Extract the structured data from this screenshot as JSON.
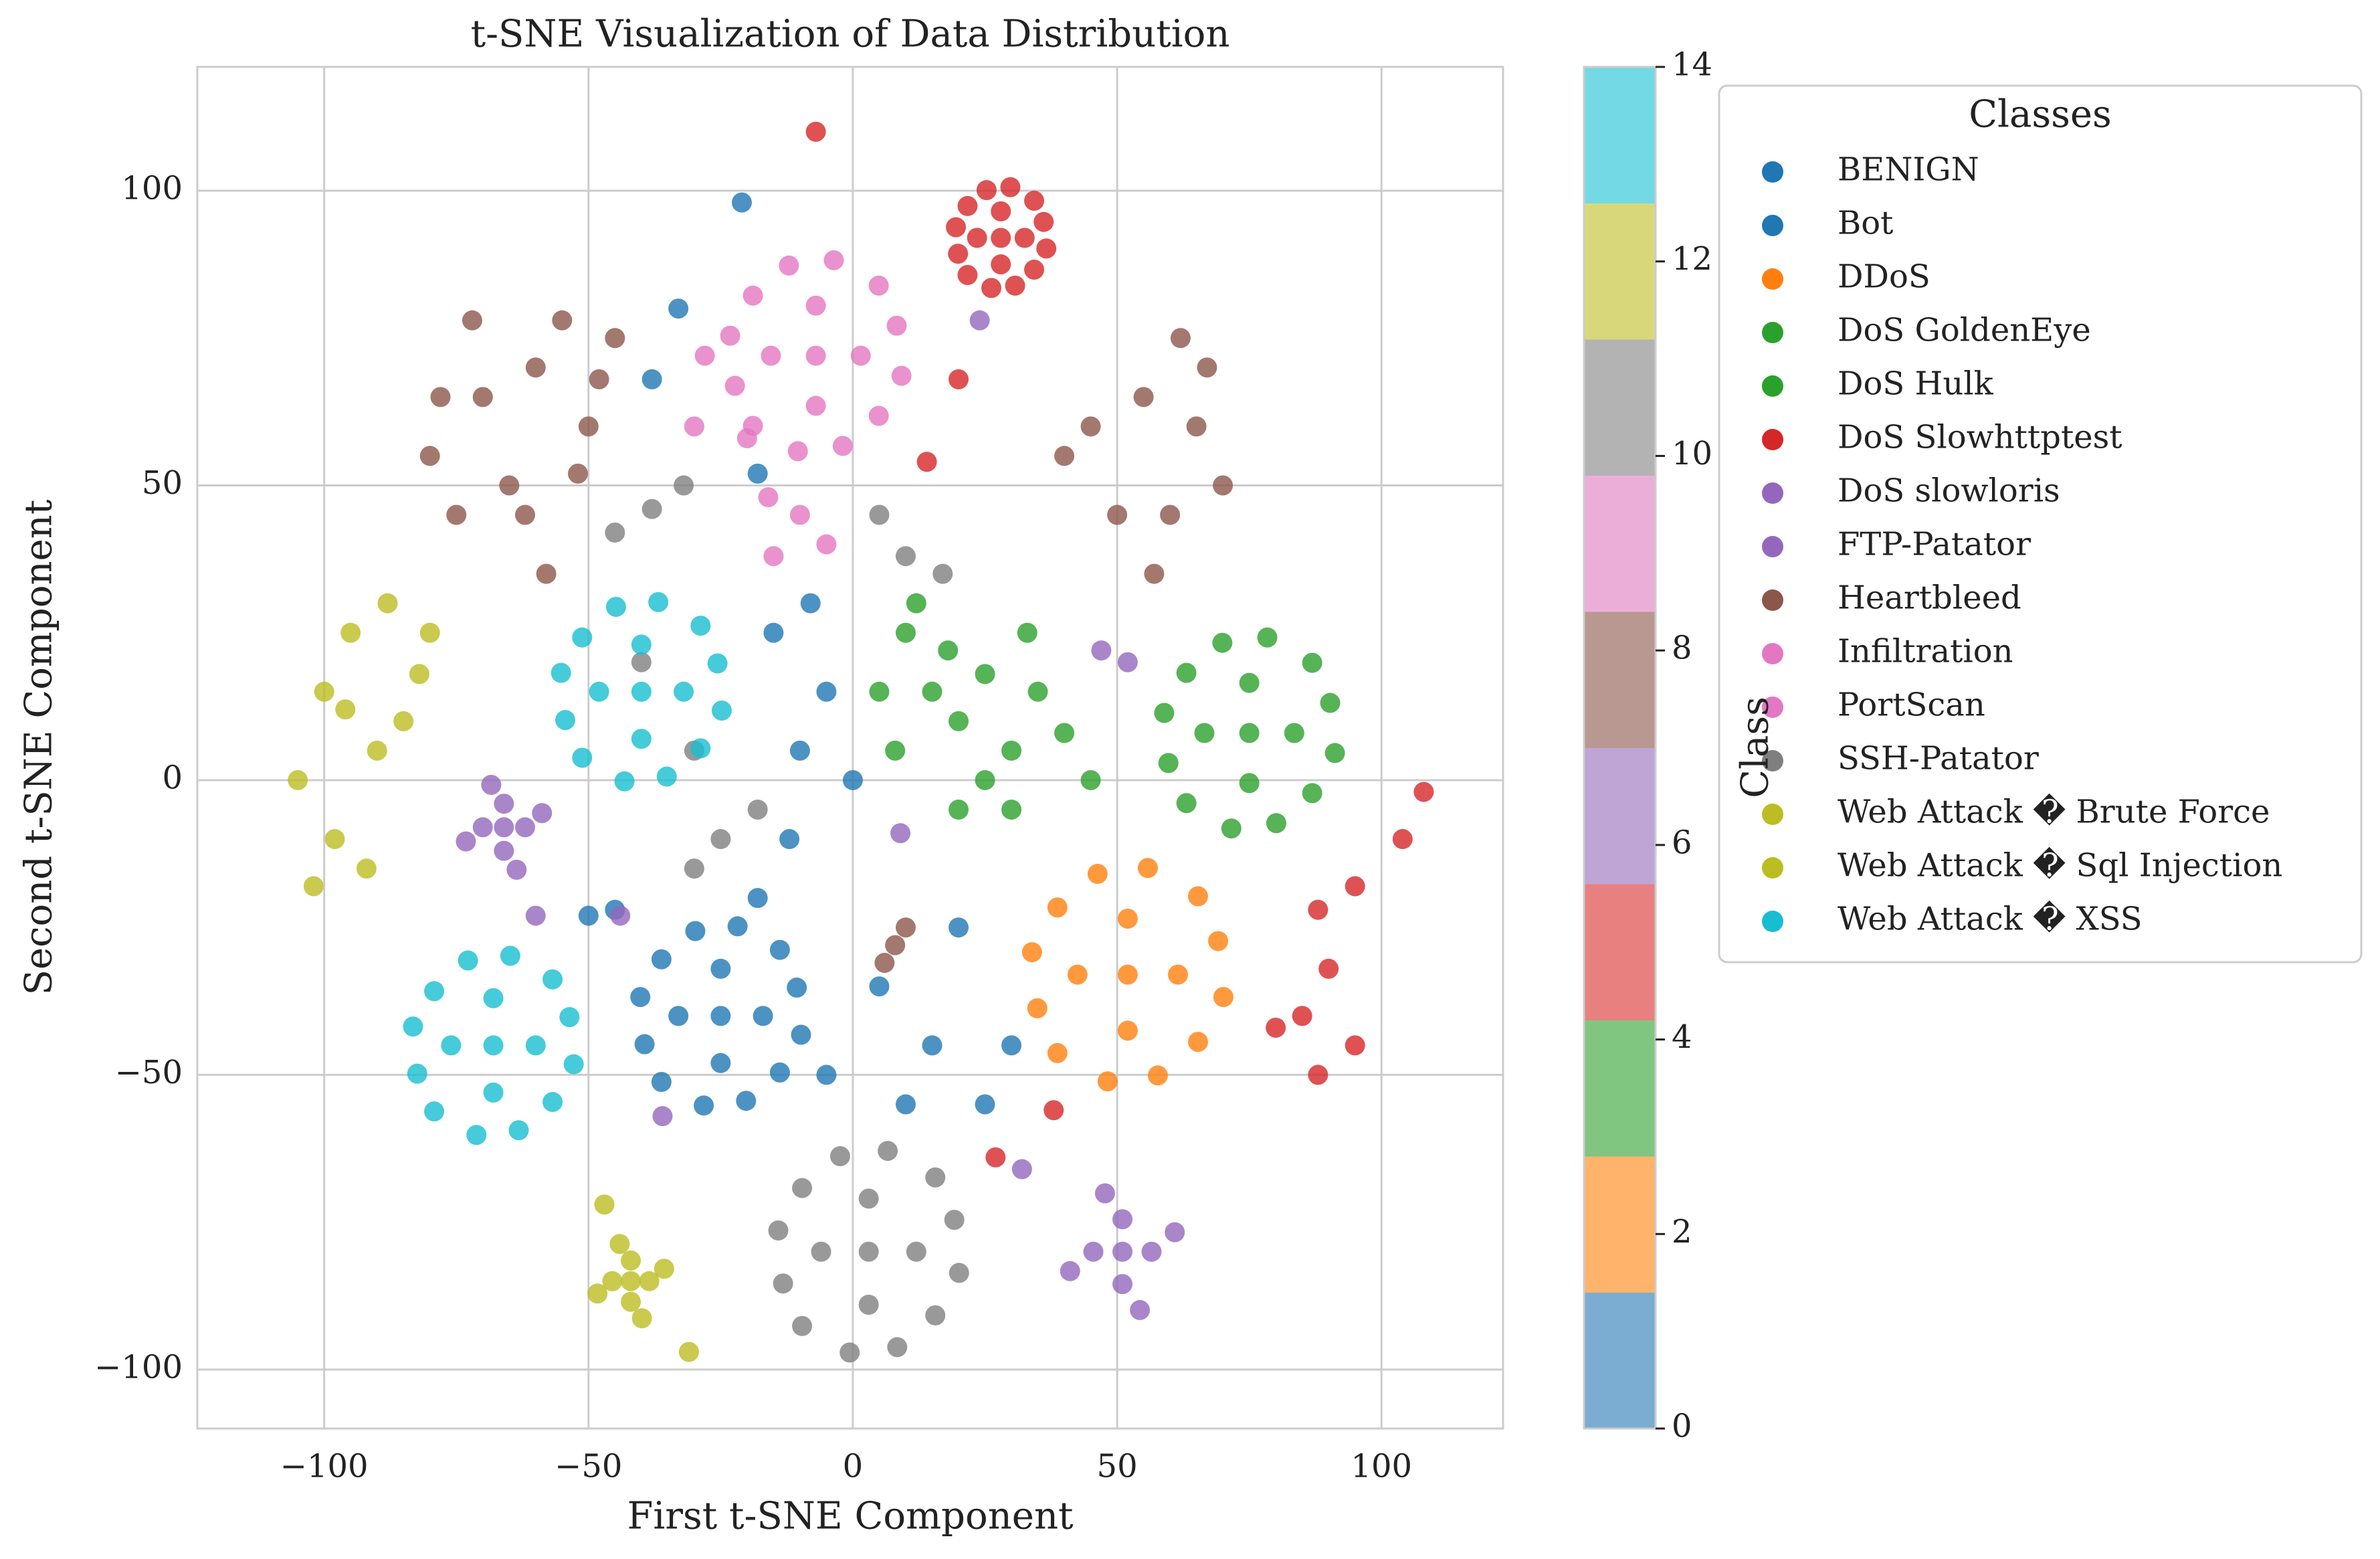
{
  "chart_data": {
    "type": "scatter",
    "title": "t-SNE Visualization of Data Distribution",
    "x_label": "First t-SNE Component",
    "y_label": "Second t-SNE Component",
    "xlim": [
      -124,
      123
    ],
    "ylim": [
      -110,
      121
    ],
    "xticks": [
      {
        "value": -100,
        "label": "−100"
      },
      {
        "value": -50,
        "label": "−50"
      },
      0,
      50,
      100
    ],
    "yticks": [
      {
        "value": -100,
        "label": "−100"
      },
      {
        "value": -50,
        "label": "−50"
      },
      0,
      50,
      100
    ],
    "grid": true,
    "legend_title": "Classes",
    "legend_position": "outside-right",
    "colorbar": {
      "label": "Class",
      "lim": [
        0,
        14
      ],
      "ticks": [
        0,
        2,
        4,
        6,
        8,
        10,
        12,
        14
      ],
      "colors": [
        "#7aadd1",
        "#ffb36b",
        "#80c680",
        "#e88080",
        "#bea5d6",
        "#b89890",
        "#ebaed8",
        "#b3b3b3",
        "#d8d87a",
        "#72d9e5"
      ]
    },
    "series": [
      {
        "name": "BENIGN",
        "color": "#1f77b4",
        "x": [
          -25,
          -17,
          -33,
          -25,
          -25,
          -10.6,
          -39.4,
          -20.2,
          -29.8,
          -13.8,
          -36.2,
          -13.8,
          -36.2,
          -9.8,
          -28.2,
          -21.8,
          -40.2,
          -10,
          -5,
          -15,
          0,
          -12,
          5,
          15,
          25,
          -5,
          10,
          -18,
          -8,
          30,
          -45,
          20
        ],
        "values": [
          -40,
          -40,
          -40,
          -32,
          -48,
          -35.2,
          -44.8,
          -54.4,
          -25.6,
          -28.8,
          -51.2,
          -49.6,
          -30.4,
          -43.2,
          -55.2,
          -24.8,
          -36.8,
          5,
          15,
          25,
          0,
          -10,
          -35,
          -45,
          -55,
          -50,
          -55,
          -20,
          30,
          -45,
          -22,
          -25
        ]
      },
      {
        "name": "Bot",
        "color": "#1f77b4",
        "x": [
          -21,
          -33,
          -50,
          -18,
          -38
        ],
        "values": [
          98,
          80,
          -23,
          52,
          68
        ]
      },
      {
        "name": "DDoS",
        "color": "#ff7f0e",
        "x": [
          52,
          61.5,
          42.5,
          52,
          52,
          69.1,
          34.9,
          57.7,
          46.3,
          65.3,
          38.7,
          65.3,
          38.7,
          70.1,
          48.2,
          55.8,
          33.9
        ],
        "values": [
          -33,
          -33,
          -33,
          -23.5,
          -42.5,
          -27.3,
          -38.7,
          -50.1,
          -15.9,
          -19.7,
          -46.3,
          -44.4,
          -21.6,
          -36.8,
          -51.1,
          -14.9,
          -29.2
        ]
      },
      {
        "name": "DoS GoldenEye",
        "color": "#2ca02c",
        "x": [
          10,
          15,
          8,
          20,
          25,
          30,
          35,
          40,
          30,
          20,
          12,
          18,
          45,
          33,
          5,
          25
        ],
        "values": [
          25,
          15,
          5,
          10,
          0,
          5,
          15,
          8,
          -5,
          -5,
          30,
          22,
          0,
          25,
          15,
          18
        ]
      },
      {
        "name": "DoS Hulk",
        "color": "#2ca02c",
        "x": [
          75,
          83.5,
          66.5,
          75,
          75,
          90.3,
          59.7,
          80.1,
          69.9,
          86.9,
          63.1,
          86.9,
          63.1,
          91.2,
          71.6,
          78.4,
          58.9
        ],
        "values": [
          8,
          8,
          8,
          16.5,
          -0.5,
          13.1,
          2.9,
          -7.3,
          23.3,
          19.9,
          -3.9,
          -2.2,
          18.2,
          4.6,
          -8.2,
          24.2,
          11.4
        ]
      },
      {
        "name": "DoS Slowhttptest",
        "color": "#d62728",
        "x": [
          28,
          32.5,
          23.5,
          28,
          28,
          36.1,
          19.9,
          30.7,
          25.3,
          34.3,
          21.7,
          34.3,
          21.7,
          36.6,
          26.2,
          29.8,
          19.5,
          -7,
          108,
          104,
          95,
          88,
          90,
          85,
          95,
          88,
          80,
          38,
          27,
          20,
          14
        ],
        "values": [
          92,
          92,
          92,
          96.5,
          87.5,
          94.7,
          89.3,
          83.9,
          100.1,
          98.3,
          85.7,
          86.6,
          97.4,
          90.2,
          83.5,
          100.6,
          93.8,
          110,
          -2,
          -10,
          -18,
          -22,
          -32,
          -40,
          -45,
          -50,
          -42,
          -56,
          -64,
          68,
          54
        ]
      },
      {
        "name": "DoS slowloris",
        "color": "#9467bd",
        "x": [
          -66,
          -62,
          -70,
          -66,
          -66,
          -58.8,
          -73.2,
          -63.6,
          -68.4,
          51,
          56.5,
          45.5,
          51,
          51,
          60.9,
          41.1,
          54.3,
          47.7
        ],
        "values": [
          -8,
          -8,
          -8,
          -4,
          -12,
          -5.6,
          -10.4,
          -15.2,
          -0.8,
          -80,
          -80,
          -80,
          -74.5,
          -85.5,
          -76.7,
          -83.3,
          -89.9,
          -70.1
        ]
      },
      {
        "name": "FTP-Patator",
        "color": "#9467bd",
        "x": [
          47,
          52,
          9,
          -60,
          -36,
          32,
          -44,
          24
        ],
        "values": [
          22,
          20,
          -9,
          -23,
          -57,
          -66,
          -23,
          78
        ]
      },
      {
        "name": "Heartbleed",
        "color": "#8c564b",
        "x": [
          -80,
          -70,
          -60,
          -50,
          -45,
          -75,
          -65,
          -55,
          -48,
          -72,
          -62,
          -52,
          -78,
          -58,
          45,
          55,
          65,
          70,
          60,
          50,
          62,
          57,
          67,
          40,
          8,
          10,
          6
        ],
        "values": [
          55,
          65,
          70,
          60,
          75,
          45,
          50,
          78,
          68,
          78,
          45,
          52,
          65,
          35,
          60,
          65,
          60,
          50,
          45,
          45,
          75,
          35,
          70,
          55,
          -28,
          -25,
          -31
        ]
      },
      {
        "name": "Infiltration",
        "color": "#e377c2",
        "x": [
          -7,
          1.5,
          -15.5,
          -7,
          -7,
          8.3,
          -22.3,
          -1.9,
          -12.1,
          4.9,
          -18.9,
          4.9,
          -18.9,
          9.2,
          -10.4,
          -3.6,
          -23.2
        ],
        "values": [
          72,
          72,
          72,
          80.5,
          63.5,
          77.1,
          66.9,
          56.7,
          87.3,
          83.9,
          60.1,
          61.8,
          82.2,
          68.6,
          55.8,
          88.2,
          75.4
        ]
      },
      {
        "name": "PortScan",
        "color": "#e377c2",
        "x": [
          -10,
          -15,
          -20,
          -5,
          -28,
          -30,
          -16
        ],
        "values": [
          45,
          38,
          58,
          40,
          72,
          60,
          48
        ]
      },
      {
        "name": "SSH-Patator",
        "color": "#7f7f7f",
        "x": [
          3,
          12,
          -6,
          3,
          3,
          19.2,
          -13.2,
          8.4,
          -2.4,
          15.6,
          -9.6,
          15.6,
          -9.6,
          20.1,
          -0.6,
          6.6,
          -14.1,
          -38,
          -45,
          -32,
          10,
          5,
          17,
          -25,
          -18,
          -30,
          -40,
          -30
        ],
        "values": [
          -80,
          -80,
          -80,
          -71,
          -89,
          -74.6,
          -85.4,
          -96.2,
          -63.8,
          -67.4,
          -92.6,
          -90.8,
          -69.2,
          -83.6,
          -97.1,
          -62.9,
          -76.4,
          46,
          42,
          50,
          38,
          45,
          35,
          -10,
          -5,
          -15,
          20,
          5
        ]
      },
      {
        "name": "Web Attack � Brute Force",
        "color": "#bcbd22",
        "x": [
          -100,
          -95,
          -90,
          -88,
          -82,
          -105,
          -98,
          -92,
          -85,
          -80,
          -102,
          -96
        ],
        "values": [
          15,
          25,
          5,
          30,
          18,
          0,
          -10,
          -15,
          10,
          25,
          -18,
          12
        ]
      },
      {
        "name": "Web Attack � Sql Injection",
        "color": "#bcbd22",
        "x": [
          -42,
          -38.5,
          -45.5,
          -42,
          -42,
          -35.7,
          -48.3,
          -39.9,
          -44.1,
          -31,
          -47
        ],
        "values": [
          -85,
          -85,
          -85,
          -81.5,
          -88.5,
          -82.9,
          -87.1,
          -91.3,
          -78.7,
          -97,
          -72
        ]
      },
      {
        "name": "Web Attack � XSS",
        "color": "#17becf",
        "x": [
          -68,
          -60,
          -76,
          -68,
          -68,
          -53.6,
          -82.4,
          -63.2,
          -72.8,
          -56.8,
          -79.2,
          -56.8,
          -79.2,
          -52.8,
          -71.2,
          -64.8,
          -83.2,
          -40,
          -32,
          -48,
          -40,
          -40,
          -25.6,
          -54.4,
          -35.2,
          -44.8,
          -28.8,
          -51.2,
          -28.8,
          -51.2,
          -24.8,
          -43.2,
          -36.8,
          -55.2
        ],
        "values": [
          -45,
          -45,
          -45,
          -37,
          -53,
          -40.2,
          -49.8,
          -59.4,
          -30.6,
          -33.8,
          -56.2,
          -54.6,
          -35.8,
          -48.2,
          -60.2,
          -29.8,
          -41.8,
          15,
          15,
          15,
          23,
          7,
          19.8,
          10.2,
          0.6,
          29.4,
          26.2,
          3.8,
          5.4,
          24.2,
          11.8,
          -0.2,
          30.2,
          18.2
        ]
      }
    ]
  }
}
